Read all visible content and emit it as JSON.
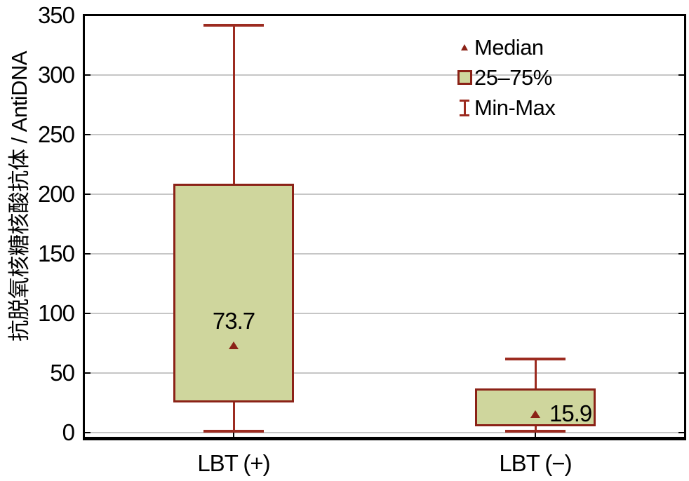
{
  "chart_data": {
    "type": "box",
    "title": "",
    "xlabel": "",
    "ylabel": "抗脱氧核糖核酸抗体 / AntiDNA",
    "ylim": [
      0,
      350
    ],
    "yticks": [
      0,
      50,
      100,
      150,
      200,
      250,
      300,
      350
    ],
    "grid": "horizontal",
    "categories": [
      "LBT (+)",
      "LBT (−)"
    ],
    "boxes": [
      {
        "category": "LBT (+)",
        "min": 1,
        "q1": 25,
        "median": 73.7,
        "q3": 209,
        "max": 342,
        "median_label": "73.7",
        "label_position": "above"
      },
      {
        "category": "LBT (−)",
        "min": 1,
        "q1": 5,
        "median": 15.9,
        "q3": 37,
        "max": 62,
        "median_label": "15.9",
        "label_position": "right"
      }
    ],
    "legend": {
      "position": "top-right",
      "items": [
        {
          "marker": "median-triangle",
          "label": "Median"
        },
        {
          "marker": "iqr-box",
          "label": "25–75%"
        },
        {
          "marker": "minmax-whisker",
          "label": "Min-Max"
        }
      ]
    },
    "colors": {
      "box_fill": "#cfd69d",
      "box_border": "#8b2217",
      "whisker": "#9c2b20",
      "median_marker": "#8b2217",
      "grid_line": "#c6c6c6",
      "axis": "#000000",
      "text": "#000000",
      "background": "#ffffff"
    }
  }
}
